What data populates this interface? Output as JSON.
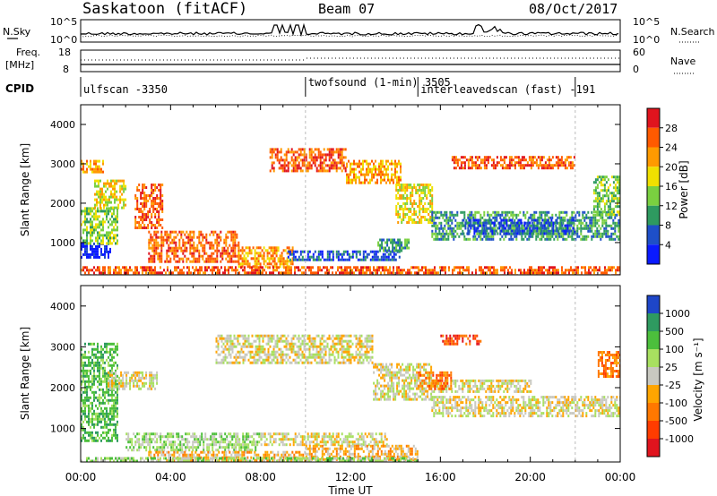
{
  "header": {
    "station": "Saskatoon (fitACF)",
    "beam": "Beam 07",
    "date": "08/Oct/2017"
  },
  "noise_panel": {
    "left_label": "N.Sky",
    "right_label": "N.Search",
    "left_ticks": [
      "10^5",
      "10^0"
    ],
    "right_ticks": [
      "10^5",
      "10^0"
    ]
  },
  "freq_panel": {
    "left_label_line1": "Freq.",
    "left_label_line2": "[MHz]",
    "right_label": "Nave",
    "left_ticks": [
      "18",
      "8"
    ],
    "right_ticks": [
      "60",
      "0"
    ]
  },
  "cpid": {
    "label": "CPID",
    "segments": [
      {
        "name": "ulfscan -3350",
        "start_hour": 0.0,
        "end_hour": 10.0
      },
      {
        "name": "twofsound (1-min) 3505",
        "start_hour": 10.0,
        "end_hour": 15.0
      },
      {
        "name": "interleavedscan (fast) -191",
        "start_hour": 15.0,
        "end_hour": 22.0
      }
    ]
  },
  "chart_data": [
    {
      "type": "heatmap",
      "title": "",
      "xlabel": "Time UT",
      "ylabel": "Slant Range [km]",
      "xlim": [
        0,
        24
      ],
      "ylim": [
        180,
        4500
      ],
      "x_ticks": [
        "00:00",
        "04:00",
        "08:00",
        "12:00",
        "16:00",
        "20:00",
        "00:00"
      ],
      "y_ticks": [
        "1000",
        "2000",
        "3000",
        "4000"
      ],
      "colorbar": {
        "label": "Power [dB]",
        "ticks": [
          "28",
          "24",
          "20",
          "16",
          "12",
          "8",
          "4"
        ],
        "colors": [
          "#e0141e",
          "#ff5a00",
          "#ff9a00",
          "#f0e000",
          "#7ad040",
          "#2e9a60",
          "#1e4fc8",
          "#0a1aff"
        ]
      },
      "regions": [
        {
          "t0": 0.0,
          "t1": 1.3,
          "r0": 600,
          "r1": 1000,
          "level": 7
        },
        {
          "t0": 0.0,
          "t1": 1.6,
          "r0": 1000,
          "r1": 1900,
          "level": 4
        },
        {
          "t0": 0.6,
          "t1": 2.0,
          "r0": 1900,
          "r1": 2600,
          "level": 3
        },
        {
          "t0": 2.4,
          "t1": 3.6,
          "r0": 1400,
          "r1": 2500,
          "level": 1
        },
        {
          "t0": 0.0,
          "t1": 1.0,
          "r0": 2800,
          "r1": 3100,
          "level": 2
        },
        {
          "t0": 3.0,
          "t1": 7.0,
          "r0": 500,
          "r1": 1300,
          "level": 1
        },
        {
          "t0": 7.0,
          "t1": 9.4,
          "r0": 400,
          "r1": 900,
          "level": 2
        },
        {
          "t0": 9.2,
          "t1": 14.2,
          "r0": 550,
          "r1": 800,
          "level": 6
        },
        {
          "t0": 13.2,
          "t1": 14.6,
          "r0": 800,
          "r1": 1100,
          "level": 5
        },
        {
          "t0": 8.4,
          "t1": 11.8,
          "r0": 2800,
          "r1": 3400,
          "level": 1
        },
        {
          "t0": 11.8,
          "t1": 14.2,
          "r0": 2500,
          "r1": 3100,
          "level": 2
        },
        {
          "t0": 14.0,
          "t1": 15.6,
          "r0": 1500,
          "r1": 2500,
          "level": 3
        },
        {
          "t0": 15.6,
          "t1": 24.0,
          "r0": 1100,
          "r1": 1800,
          "level": 5
        },
        {
          "t0": 17.0,
          "t1": 22.0,
          "r0": 1250,
          "r1": 1600,
          "level": 6
        },
        {
          "t0": 22.8,
          "t1": 24.0,
          "r0": 1700,
          "r1": 2700,
          "level": 4
        },
        {
          "t0": 16.5,
          "t1": 22.0,
          "r0": 2900,
          "r1": 3200,
          "level": 1
        },
        {
          "t0": 0.0,
          "t1": 24.0,
          "r0": 180,
          "r1": 400,
          "level": 1
        }
      ]
    },
    {
      "type": "heatmap",
      "title": "",
      "xlabel": "Time UT",
      "ylabel": "Slant Range [km]",
      "xlim": [
        0,
        24
      ],
      "ylim": [
        180,
        4500
      ],
      "x_ticks": [
        "00:00",
        "04:00",
        "08:00",
        "12:00",
        "16:00",
        "20:00",
        "00:00"
      ],
      "y_ticks": [
        "1000",
        "2000",
        "3000",
        "4000"
      ],
      "colorbar": {
        "label": "Velocity [m s⁻¹]",
        "ticks": [
          "1000",
          "500",
          "100",
          "25",
          "-25",
          "-100",
          "-500",
          "-1000"
        ],
        "colors": [
          "#1e46c8",
          "#2e9a60",
          "#4cbf3c",
          "#a8e060",
          "#c8c8c0",
          "#ffa500",
          "#ff7800",
          "#ff3c00",
          "#e0141e"
        ]
      },
      "regions": [
        {
          "t0": 0.0,
          "t1": 1.6,
          "r0": 700,
          "r1": 3100,
          "level": 2
        },
        {
          "t0": 1.2,
          "t1": 3.4,
          "r0": 2000,
          "r1": 2400,
          "level": 4
        },
        {
          "t0": 2.0,
          "t1": 8.0,
          "r0": 500,
          "r1": 900,
          "level": 3
        },
        {
          "t0": 8.0,
          "t1": 13.6,
          "r0": 600,
          "r1": 900,
          "level": 4
        },
        {
          "t0": 3.0,
          "t1": 10.0,
          "r0": 180,
          "r1": 450,
          "level": 5
        },
        {
          "t0": 10.0,
          "t1": 15.0,
          "r0": 250,
          "r1": 600,
          "level": 5
        },
        {
          "t0": 6.0,
          "t1": 13.0,
          "r0": 2600,
          "r1": 3300,
          "level": 4
        },
        {
          "t0": 13.0,
          "t1": 15.6,
          "r0": 1700,
          "r1": 2600,
          "level": 4
        },
        {
          "t0": 15.6,
          "t1": 24.0,
          "r0": 1300,
          "r1": 1800,
          "level": 4
        },
        {
          "t0": 15.6,
          "t1": 20.0,
          "r0": 1900,
          "r1": 2200,
          "level": 4
        },
        {
          "t0": 15.0,
          "t1": 16.5,
          "r0": 2000,
          "r1": 2400,
          "level": 6
        },
        {
          "t0": 16.0,
          "t1": 17.8,
          "r0": 3100,
          "r1": 3300,
          "level": 7
        },
        {
          "t0": 23.0,
          "t1": 24.0,
          "r0": 2300,
          "r1": 2900,
          "level": 6
        },
        {
          "t0": 0.0,
          "t1": 15.0,
          "r0": 180,
          "r1": 300,
          "level": 3
        }
      ]
    }
  ]
}
